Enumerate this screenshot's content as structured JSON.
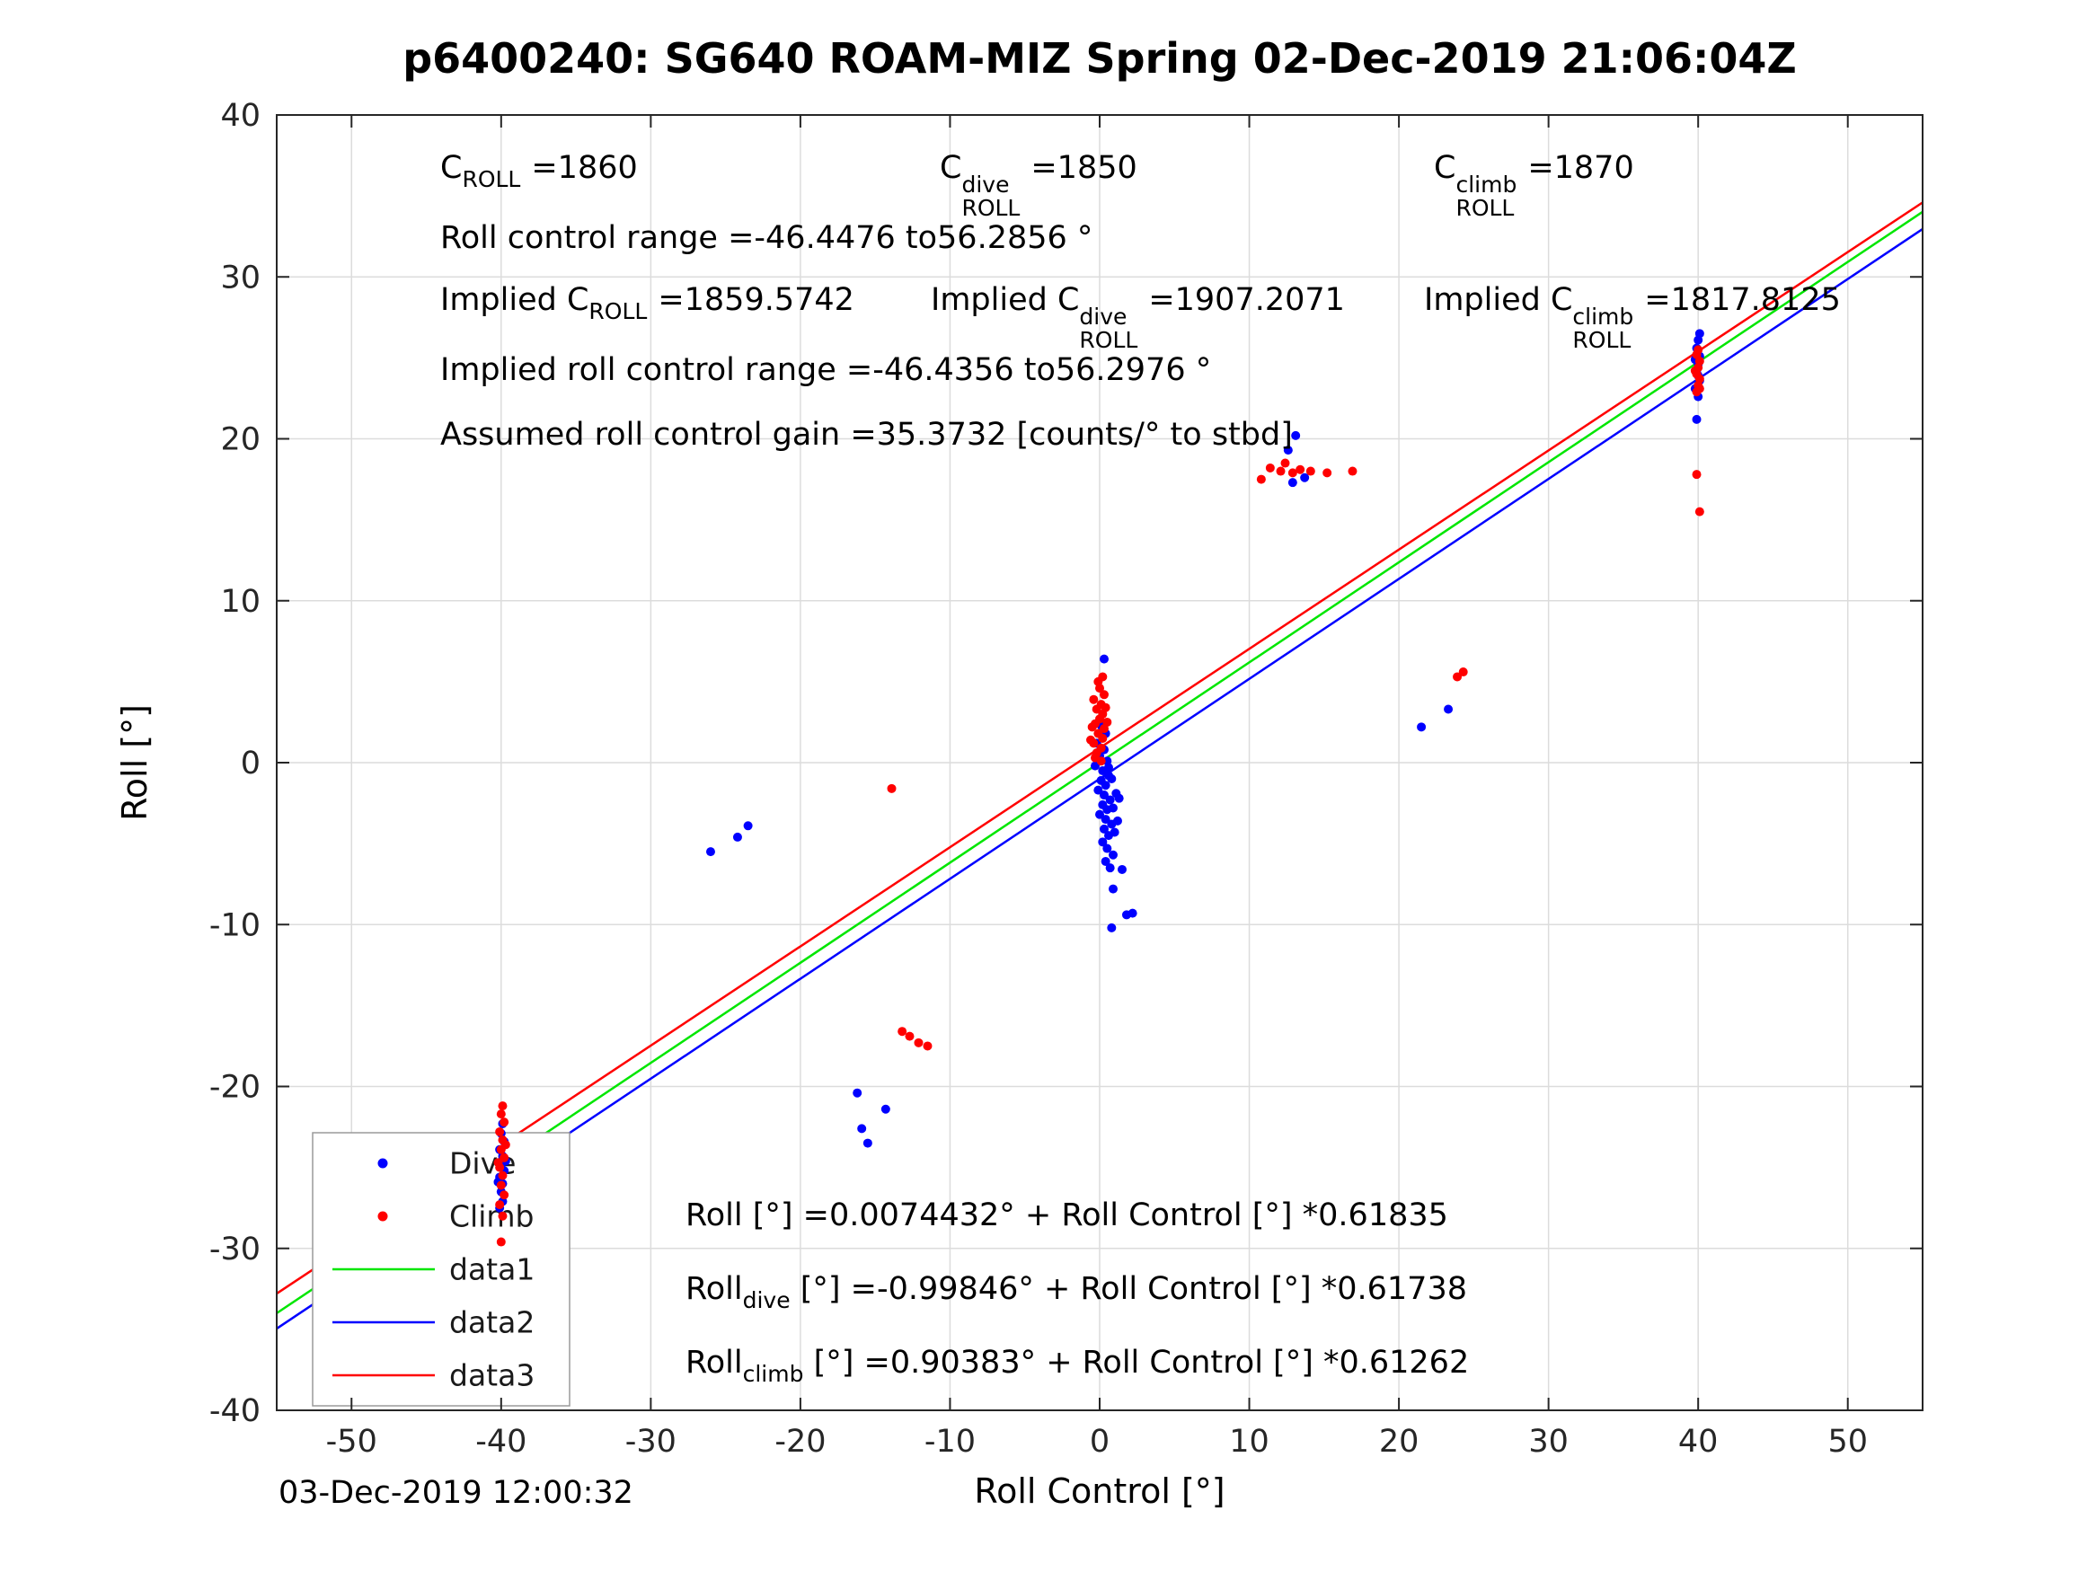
{
  "title": "p6400240: SG640 ROAM-MIZ Spring 02-Dec-2019 21:06:04Z",
  "timestamp": "03-Dec-2019 12:00:32",
  "annotations": {
    "row1": [
      {
        "base": "C",
        "sub": "ROLL",
        "value": "=1860"
      },
      {
        "base": "C",
        "sup": "dive",
        "sub": "ROLL",
        "value": "=1850"
      },
      {
        "base": "C",
        "sup": "climb",
        "sub": "ROLL",
        "value": "=1870"
      }
    ],
    "roll_control_range": "Roll control range =-46.4476 to56.2856 °",
    "row3": [
      {
        "base": "Implied C",
        "sub": "ROLL",
        "value": "=1859.5742"
      },
      {
        "base": "Implied C",
        "sup": "dive",
        "sub": "ROLL",
        "value": "=1907.2071"
      },
      {
        "base": "Implied C",
        "sup": "climb",
        "sub": "ROLL",
        "value": "=1817.8125"
      }
    ],
    "implied_roll_control_range": "Implied roll control range =-46.4356 to56.2976 °",
    "assumed_gain": "Assumed roll control gain =35.3732 [counts/° to stbd]"
  },
  "equations": [
    {
      "pre": "Roll",
      "sub": "",
      "post": " [°] =0.0074432° + Roll Control [°] *0.61835"
    },
    {
      "pre": "Roll",
      "sub": "dive",
      "post": " [°] =-0.99846° + Roll Control [°] *0.61738"
    },
    {
      "pre": "Roll",
      "sub": "climb",
      "post": " [°] =0.90383° + Roll Control [°] *0.61262"
    }
  ],
  "legend": {
    "items": [
      {
        "label": "Dive",
        "type": "dot",
        "color": "#0000ff"
      },
      {
        "label": "Climb",
        "type": "dot",
        "color": "#ff0000"
      },
      {
        "label": "data1",
        "type": "line",
        "color": "#00e600"
      },
      {
        "label": "data2",
        "type": "line",
        "color": "#0000ff"
      },
      {
        "label": "data3",
        "type": "line",
        "color": "#ff0000"
      }
    ]
  },
  "chart_data": {
    "type": "scatter",
    "title": "p6400240: SG640 ROAM-MIZ Spring 02-Dec-2019 21:06:04Z",
    "xlabel": "Roll Control [°]",
    "ylabel": "Roll [°]",
    "xlim": [
      -55,
      55
    ],
    "ylim": [
      -40,
      40
    ],
    "xticks": [
      -50,
      -40,
      -30,
      -20,
      -10,
      0,
      10,
      20,
      30,
      40,
      50
    ],
    "yticks": [
      -40,
      -30,
      -20,
      -10,
      0,
      10,
      20,
      30,
      40
    ],
    "grid": true,
    "series": [
      {
        "name": "Dive",
        "color": "#0000ff",
        "marker": "dot",
        "points": [
          [
            -39.9,
            -22.3
          ],
          [
            -40.0,
            -22.9
          ],
          [
            -39.8,
            -23.4
          ],
          [
            -40.1,
            -23.9
          ],
          [
            -39.9,
            -24.3
          ],
          [
            -40.0,
            -24.8
          ],
          [
            -39.8,
            -25.2
          ],
          [
            -40.1,
            -25.6
          ],
          [
            -39.9,
            -26.0
          ],
          [
            -40.0,
            -26.5
          ],
          [
            -39.9,
            -27.1
          ],
          [
            -40.1,
            -27.5
          ],
          [
            -39.7,
            -24.6
          ],
          [
            -40.2,
            -25.9
          ],
          [
            0.3,
            6.4
          ],
          [
            0.1,
            2.3
          ],
          [
            0.4,
            1.8
          ],
          [
            -0.2,
            1.2
          ],
          [
            0.3,
            0.8
          ],
          [
            0.0,
            0.4
          ],
          [
            0.5,
            0.1
          ],
          [
            -0.3,
            -0.2
          ],
          [
            0.2,
            -0.5
          ],
          [
            0.6,
            -0.8
          ],
          [
            0.1,
            -1.1
          ],
          [
            0.4,
            -1.4
          ],
          [
            -0.1,
            -1.7
          ],
          [
            0.3,
            -2.0
          ],
          [
            0.7,
            -2.3
          ],
          [
            0.2,
            -2.6
          ],
          [
            0.5,
            -2.9
          ],
          [
            0.0,
            -3.2
          ],
          [
            0.4,
            -3.5
          ],
          [
            0.8,
            -3.8
          ],
          [
            0.3,
            -4.1
          ],
          [
            0.6,
            -4.5
          ],
          [
            0.2,
            -4.9
          ],
          [
            0.5,
            -5.3
          ],
          [
            0.9,
            -5.7
          ],
          [
            0.4,
            -6.1
          ],
          [
            0.7,
            -6.5
          ],
          [
            1.0,
            -4.3
          ],
          [
            1.2,
            -3.6
          ],
          [
            0.9,
            -2.8
          ],
          [
            1.1,
            -1.9
          ],
          [
            0.8,
            -1.0
          ],
          [
            1.3,
            -2.2
          ],
          [
            0.6,
            -0.3
          ],
          [
            1.5,
            -6.6
          ],
          [
            0.9,
            -7.8
          ],
          [
            1.8,
            -9.4
          ],
          [
            0.8,
            -10.2
          ],
          [
            2.2,
            -9.3
          ],
          [
            39.9,
            21.2
          ],
          [
            40.0,
            22.6
          ],
          [
            39.8,
            23.1
          ],
          [
            40.1,
            23.6
          ],
          [
            39.9,
            24.1
          ],
          [
            40.0,
            24.6
          ],
          [
            40.1,
            25.1
          ],
          [
            39.9,
            25.6
          ],
          [
            40.0,
            26.1
          ],
          [
            40.1,
            26.5
          ],
          [
            39.8,
            24.9
          ],
          [
            40.0,
            23.9
          ],
          [
            12.6,
            19.3
          ],
          [
            13.1,
            20.2
          ],
          [
            12.9,
            17.3
          ],
          [
            13.7,
            17.6
          ],
          [
            -26.0,
            -5.5
          ],
          [
            -24.2,
            -4.6
          ],
          [
            -23.5,
            -3.9
          ],
          [
            -16.2,
            -20.4
          ],
          [
            -14.3,
            -21.4
          ],
          [
            -15.9,
            -22.6
          ],
          [
            -15.5,
            -23.5
          ],
          [
            21.5,
            2.2
          ],
          [
            23.3,
            3.3
          ]
        ]
      },
      {
        "name": "Climb",
        "color": "#ff0000",
        "marker": "dot",
        "points": [
          [
            -39.9,
            -21.2
          ],
          [
            -40.0,
            -21.7
          ],
          [
            -39.8,
            -22.2
          ],
          [
            -40.1,
            -22.8
          ],
          [
            -39.9,
            -23.3
          ],
          [
            -40.0,
            -23.9
          ],
          [
            -39.8,
            -24.4
          ],
          [
            -40.1,
            -25.0
          ],
          [
            -39.9,
            -25.5
          ],
          [
            -40.0,
            -26.1
          ],
          [
            -39.8,
            -26.7
          ],
          [
            -40.1,
            -27.3
          ],
          [
            -39.9,
            -28.0
          ],
          [
            -40.0,
            -29.6
          ],
          [
            -39.7,
            -23.6
          ],
          [
            -40.2,
            -24.7
          ],
          [
            -0.2,
            0.6
          ],
          [
            0.1,
            0.9
          ],
          [
            -0.4,
            1.2
          ],
          [
            0.2,
            1.5
          ],
          [
            -0.1,
            1.8
          ],
          [
            0.3,
            2.1
          ],
          [
            -0.3,
            2.4
          ],
          [
            0.0,
            2.7
          ],
          [
            0.2,
            3.0
          ],
          [
            -0.2,
            3.3
          ],
          [
            0.1,
            3.6
          ],
          [
            -0.4,
            3.9
          ],
          [
            0.3,
            4.2
          ],
          [
            0.0,
            4.6
          ],
          [
            -0.1,
            5.0
          ],
          [
            0.2,
            5.3
          ],
          [
            -0.5,
            2.2
          ],
          [
            -0.6,
            1.4
          ],
          [
            0.5,
            2.5
          ],
          [
            0.4,
            3.4
          ],
          [
            -0.3,
            0.3
          ],
          [
            0.1,
            0.1
          ],
          [
            39.9,
            22.9
          ],
          [
            40.0,
            23.3
          ],
          [
            40.1,
            23.7
          ],
          [
            39.9,
            24.0
          ],
          [
            40.0,
            24.4
          ],
          [
            40.1,
            24.8
          ],
          [
            39.9,
            25.2
          ],
          [
            40.0,
            25.5
          ],
          [
            39.8,
            24.2
          ],
          [
            40.1,
            23.1
          ],
          [
            40.1,
            15.5
          ],
          [
            39.9,
            17.8
          ],
          [
            10.8,
            17.5
          ],
          [
            11.4,
            18.2
          ],
          [
            12.1,
            18.0
          ],
          [
            12.9,
            17.9
          ],
          [
            13.4,
            18.1
          ],
          [
            14.1,
            18.0
          ],
          [
            15.2,
            17.9
          ],
          [
            16.9,
            18.0
          ],
          [
            12.4,
            18.5
          ],
          [
            -13.9,
            -1.6
          ],
          [
            -13.2,
            -16.6
          ],
          [
            -12.7,
            -16.9
          ],
          [
            -12.1,
            -17.3
          ],
          [
            -11.5,
            -17.5
          ],
          [
            23.9,
            5.3
          ],
          [
            24.3,
            5.6
          ]
        ]
      },
      {
        "name": "data1",
        "color": "#00e600",
        "type": "line",
        "intercept": 0.0074432,
        "slope": 0.61835
      },
      {
        "name": "data2",
        "color": "#0000ff",
        "type": "line",
        "intercept": -0.99846,
        "slope": 0.61738
      },
      {
        "name": "data3",
        "color": "#ff0000",
        "type": "line",
        "intercept": 0.90383,
        "slope": 0.61262
      }
    ]
  }
}
